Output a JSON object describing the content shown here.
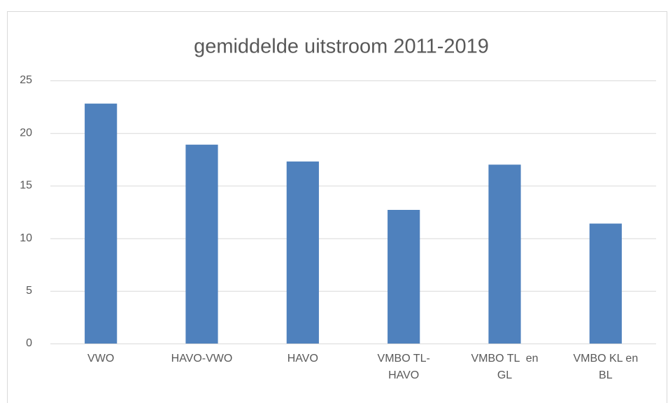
{
  "chart_data": {
    "type": "bar",
    "title": "gemiddelde uitstroom 2011-2019",
    "categories": [
      "VWO",
      "HAVO-VWO",
      "HAVO",
      "VMBO TL-HAVO",
      "VMBO TL  en GL",
      "VMBO KL en BL"
    ],
    "values": [
      22.8,
      18.9,
      17.3,
      12.7,
      17.0,
      11.4
    ],
    "color": "#4f81bd",
    "ylim": [
      0,
      25
    ],
    "yticks": [
      0,
      5,
      10,
      15,
      20,
      25
    ],
    "grid": true
  }
}
